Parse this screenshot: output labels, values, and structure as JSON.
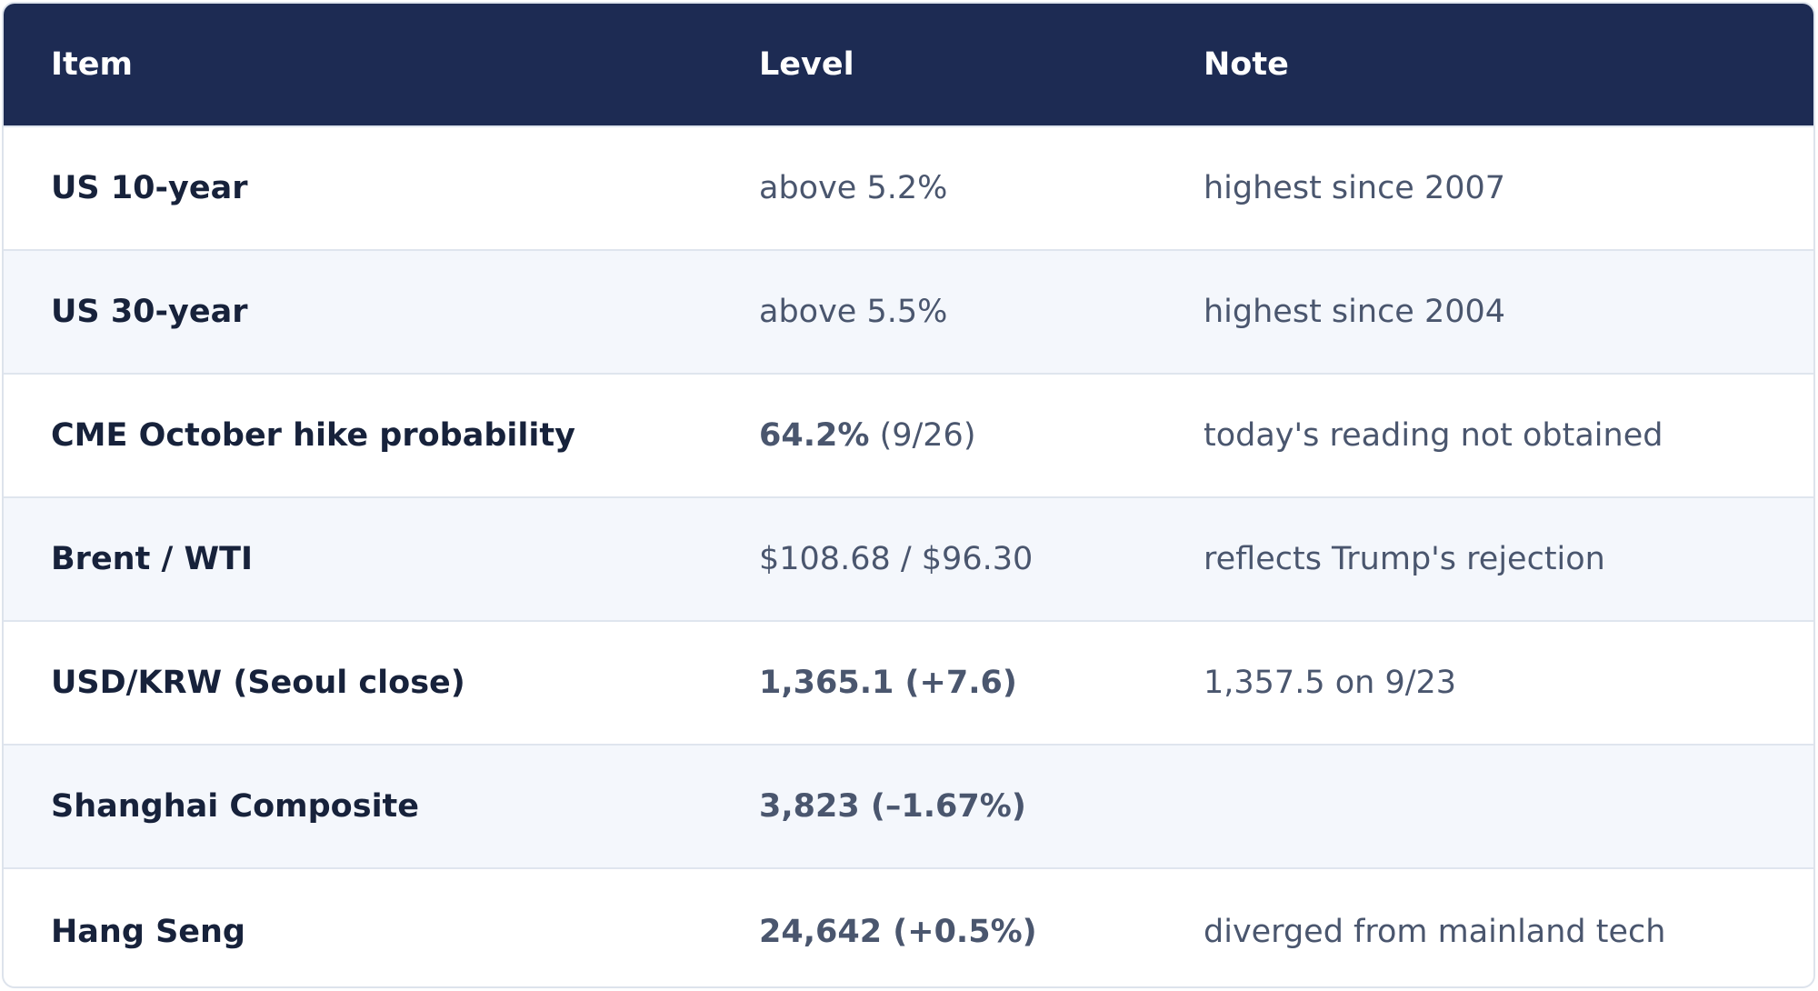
{
  "table": {
    "headers": {
      "item": "Item",
      "level": "Level",
      "note": "Note"
    },
    "rows": [
      {
        "item": "US 10-year",
        "level_main": "above 5.2%",
        "level_extra": "",
        "note": "highest since 2007"
      },
      {
        "item": "US 30-year",
        "level_main": "above 5.5%",
        "level_extra": "",
        "note": "highest since 2004"
      },
      {
        "item": "CME October hike probability",
        "level_main": "64.2%",
        "level_extra": " (9/26)",
        "note": "today's reading not obtained"
      },
      {
        "item": "Brent / WTI",
        "level_main": "$108.68 / $96.30",
        "level_extra": "",
        "note": "reflects Trump's rejection"
      },
      {
        "item": "USD/KRW (Seoul close)",
        "level_main": "1,365.1 (+7.6)",
        "level_extra": "",
        "note": "1,357.5 on 9/23"
      },
      {
        "item": "Shanghai Composite",
        "level_main": "3,823 (–1.67%)",
        "level_extra": "",
        "note": ""
      },
      {
        "item": "Hang Seng",
        "level_main": "24,642 (+0.5%)",
        "level_extra": "",
        "note": "diverged from mainland tech"
      }
    ]
  }
}
